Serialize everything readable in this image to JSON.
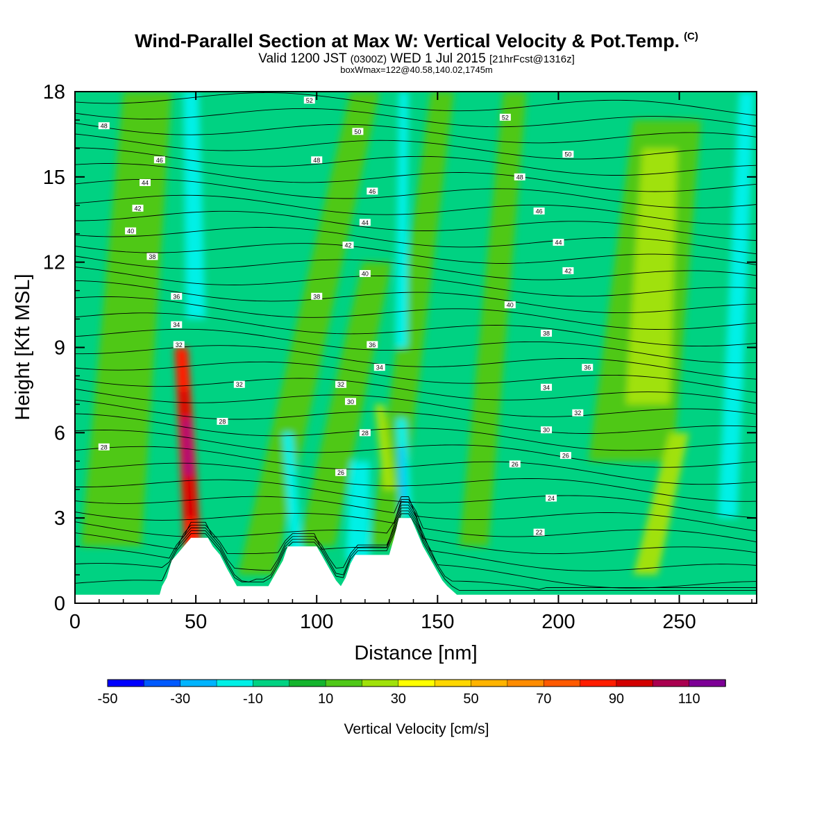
{
  "header": {
    "title": "Wind-Parallel Section at Max W: Vertical Velocity & Pot.Temp.",
    "copyright": "(C)",
    "valid_prefix": "Valid 1200 JST",
    "valid_utc": "(0300Z)",
    "valid_date": "WED 1 Jul 2015",
    "forecast": "[21hrFcst@1316z]",
    "box_info": "boxWmax=122@40.58,140.02,1745m"
  },
  "chart_data": {
    "type": "heatmap",
    "xlabel": "Distance [nm]",
    "ylabel": "Height [Kft MSL]",
    "xlim": [
      0,
      282
    ],
    "ylim": [
      0,
      18
    ],
    "x_ticks": [
      "0",
      "50",
      "100",
      "150",
      "200",
      "250"
    ],
    "y_ticks": [
      "0",
      "3",
      "6",
      "9",
      "12",
      "15",
      "18"
    ],
    "colorbar": {
      "label": "Vertical Velocity [cm/s]",
      "levels": [
        -50,
        -40,
        -30,
        -20,
        -10,
        0,
        10,
        20,
        30,
        40,
        50,
        60,
        70,
        80,
        90,
        100,
        110,
        120
      ],
      "tick_labels": [
        "-50",
        "-30",
        "-10",
        "10",
        "30",
        "50",
        "70",
        "90",
        "110"
      ],
      "colors": [
        "#0000ff",
        "#005aff",
        "#00b4ff",
        "#00f0e6",
        "#00d282",
        "#14b42d",
        "#50c819",
        "#a0e10a",
        "#ffff00",
        "#ffd700",
        "#ffb400",
        "#ff8c00",
        "#ff5a00",
        "#ff1e00",
        "#d20000",
        "#aa0050",
        "#7d0096"
      ]
    },
    "terrain": [
      [
        0,
        0.3
      ],
      [
        35,
        0.3
      ],
      [
        36,
        0.6
      ],
      [
        38,
        0.9
      ],
      [
        39,
        1.2
      ],
      [
        40,
        1.5
      ],
      [
        42,
        1.7
      ],
      [
        48,
        2.3
      ],
      [
        55,
        2.3
      ],
      [
        57,
        2
      ],
      [
        60,
        1.7
      ],
      [
        63,
        1.2
      ],
      [
        65,
        0.9
      ],
      [
        67,
        0.6
      ],
      [
        80,
        0.6
      ],
      [
        82,
        0.9
      ],
      [
        84,
        1.2
      ],
      [
        86,
        1.5
      ],
      [
        88,
        2
      ],
      [
        100,
        2
      ],
      [
        102,
        1.7
      ],
      [
        104,
        1.4
      ],
      [
        106,
        1.1
      ],
      [
        108,
        0.8
      ],
      [
        110,
        0.6
      ],
      [
        112,
        0.9
      ],
      [
        114,
        1.4
      ],
      [
        116,
        1.7
      ],
      [
        130,
        1.7
      ],
      [
        132,
        2.3
      ],
      [
        134,
        3
      ],
      [
        139,
        3
      ],
      [
        141,
        2.6
      ],
      [
        144,
        2
      ],
      [
        146,
        1.7
      ],
      [
        148,
        1.4
      ],
      [
        150,
        1.1
      ],
      [
        152,
        0.8
      ],
      [
        154,
        0.6
      ],
      [
        158,
        0.3
      ],
      [
        282,
        0.3
      ]
    ],
    "w_cells": [
      {
        "x": 49,
        "y": 1.5,
        "x2": 44,
        "y2": 9,
        "w": 7,
        "value": 80
      },
      {
        "x": 48,
        "y": 3,
        "x2": 45,
        "y2": 7.5,
        "w": 4,
        "value": 90
      },
      {
        "x": 47,
        "y": 4.5,
        "x2": 46,
        "y2": 6.5,
        "w": 2,
        "value": 110
      },
      {
        "x": 237,
        "y": 7,
        "x2": 242,
        "y2": 16,
        "w": 18,
        "value": 25
      },
      {
        "x": 230,
        "y": 5,
        "x2": 245,
        "y2": 17,
        "w": 35,
        "value": 15
      },
      {
        "x": 15,
        "y": 2,
        "x2": 30,
        "y2": 18,
        "w": 25,
        "value": 10
      },
      {
        "x": 75,
        "y": 1,
        "x2": 120,
        "y2": 18,
        "w": 15,
        "value": 10
      },
      {
        "x": 128,
        "y": 2,
        "x2": 152,
        "y2": 18,
        "w": 12,
        "value": 10
      },
      {
        "x": 100,
        "y": 2,
        "x2": 125,
        "y2": 12,
        "w": 15,
        "value": 10
      },
      {
        "x": 165,
        "y": 2,
        "x2": 182,
        "y2": 18,
        "w": 12,
        "value": 10
      },
      {
        "x": 130,
        "y": 4,
        "x2": 126,
        "y2": 7,
        "w": 5,
        "value": 20
      },
      {
        "x": 236,
        "y": 1,
        "x2": 250,
        "y2": 6,
        "w": 10,
        "value": 20
      },
      {
        "x": 137,
        "y": 3,
        "x2": 135,
        "y2": 6.5,
        "w": 5,
        "value": -20
      },
      {
        "x": 136,
        "y": 3.5,
        "x2": 135,
        "y2": 5.5,
        "w": 2,
        "value": -30
      },
      {
        "x": 117,
        "y": 1.5,
        "x2": 118,
        "y2": 5,
        "w": 10,
        "value": -15
      },
      {
        "x": 50,
        "y": 10,
        "x2": 48,
        "y2": 18,
        "w": 8,
        "value": -15
      },
      {
        "x": 270,
        "y": 3,
        "x2": 278,
        "y2": 18,
        "w": 8,
        "value": -15
      },
      {
        "x": 135,
        "y": 9,
        "x2": 136,
        "y2": 18,
        "w": 5,
        "value": -15
      },
      {
        "x": 92,
        "y": 1.5,
        "x2": 88,
        "y2": 6,
        "w": 5,
        "value": -15
      }
    ],
    "isentropes": [
      {
        "label": "22",
        "lx": 192,
        "ly": 2.5
      },
      {
        "label": "24",
        "lx": 197,
        "ly": 3.7
      },
      {
        "label": "26",
        "lx": 110,
        "ly": 4.6
      },
      {
        "label": "26",
        "lx": 182,
        "ly": 4.9
      },
      {
        "label": "26",
        "lx": 203,
        "ly": 5.2
      },
      {
        "label": "28",
        "lx": 12,
        "ly": 5.5
      },
      {
        "label": "28",
        "lx": 61,
        "ly": 6.4
      },
      {
        "label": "28",
        "lx": 120,
        "ly": 6
      },
      {
        "label": "30",
        "lx": 114,
        "ly": 7.1
      },
      {
        "label": "30",
        "lx": 195,
        "ly": 6.1
      },
      {
        "label": "32",
        "lx": 68,
        "ly": 7.7
      },
      {
        "label": "32",
        "lx": 110,
        "ly": 7.7
      },
      {
        "label": "32",
        "lx": 208,
        "ly": 6.7
      },
      {
        "label": "34",
        "lx": 126,
        "ly": 8.3
      },
      {
        "label": "34",
        "lx": 195,
        "ly": 7.6
      },
      {
        "label": "36",
        "lx": 123,
        "ly": 9.1
      },
      {
        "label": "36",
        "lx": 212,
        "ly": 8.3
      },
      {
        "label": "38",
        "lx": 195,
        "ly": 9.5
      },
      {
        "label": "34",
        "lx": 42,
        "ly": 9.8
      },
      {
        "label": "32",
        "lx": 43,
        "ly": 9.1
      },
      {
        "label": "36",
        "lx": 42,
        "ly": 10.8
      },
      {
        "label": "38",
        "lx": 100,
        "ly": 10.8
      },
      {
        "label": "38",
        "lx": 32,
        "ly": 12.2
      },
      {
        "label": "40",
        "lx": 23,
        "ly": 13.1
      },
      {
        "label": "40",
        "lx": 120,
        "ly": 11.6
      },
      {
        "label": "40",
        "lx": 180,
        "ly": 10.5
      },
      {
        "label": "42",
        "lx": 26,
        "ly": 13.9
      },
      {
        "label": "42",
        "lx": 113,
        "ly": 12.6
      },
      {
        "label": "42",
        "lx": 204,
        "ly": 11.7
      },
      {
        "label": "44",
        "lx": 29,
        "ly": 14.8
      },
      {
        "label": "44",
        "lx": 120,
        "ly": 13.4
      },
      {
        "label": "44",
        "lx": 200,
        "ly": 12.7
      },
      {
        "label": "46",
        "lx": 35,
        "ly": 15.6
      },
      {
        "label": "46",
        "lx": 123,
        "ly": 14.5
      },
      {
        "label": "46",
        "lx": 192,
        "ly": 13.8
      },
      {
        "label": "48",
        "lx": 12,
        "ly": 16.8
      },
      {
        "label": "48",
        "lx": 100,
        "ly": 15.6
      },
      {
        "label": "48",
        "lx": 184,
        "ly": 15
      },
      {
        "label": "50",
        "lx": 117,
        "ly": 16.6
      },
      {
        "label": "50",
        "lx": 204,
        "ly": 15.8
      },
      {
        "label": "52",
        "lx": 97,
        "ly": 17.7
      },
      {
        "label": "52",
        "lx": 178,
        "ly": 17.1
      }
    ]
  }
}
